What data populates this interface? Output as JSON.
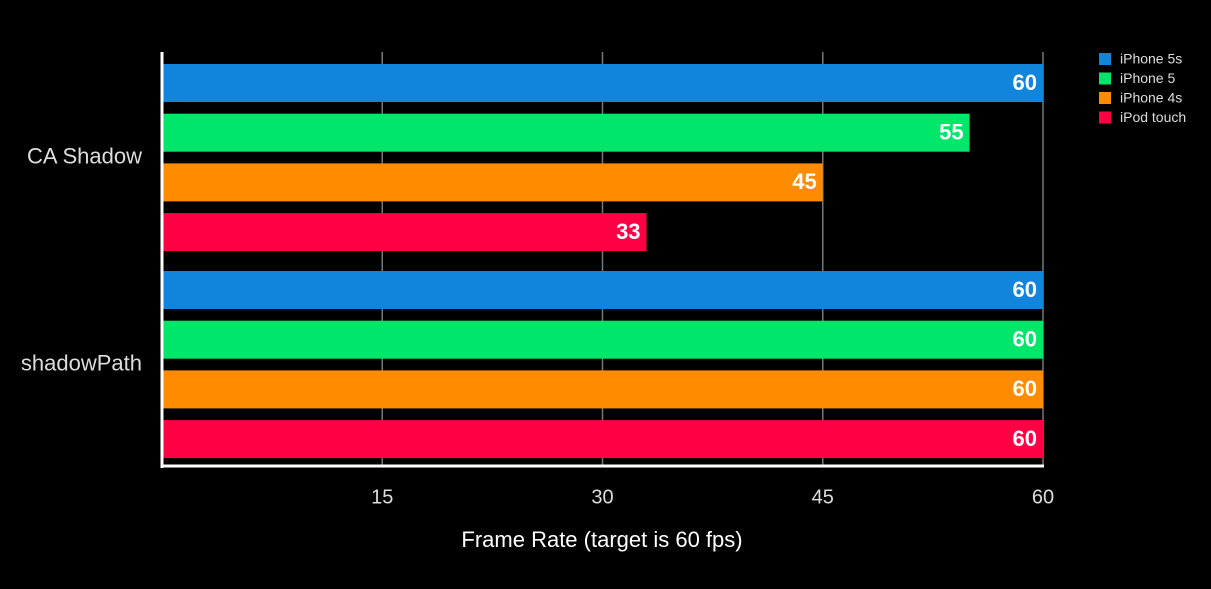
{
  "chart_data": {
    "type": "bar",
    "orientation": "horizontal",
    "x_label": "Frame Rate (target is 60 fps)",
    "categories": [
      "CA Shadow",
      "shadowPath"
    ],
    "series": [
      {
        "name": "iPhone 5s",
        "color": "#1185dc",
        "values": [
          60,
          60
        ]
      },
      {
        "name": "iPhone 5",
        "color": "#00e66a",
        "values": [
          55,
          60
        ]
      },
      {
        "name": "iPhone 4s",
        "color": "#ff8c00",
        "values": [
          45,
          60
        ]
      },
      {
        "name": "iPod touch",
        "color": "#ff0044",
        "values": [
          33,
          60
        ]
      }
    ],
    "xlim": [
      0,
      60
    ],
    "xticks": [
      15,
      30,
      45,
      60
    ],
    "grid": true,
    "legend": "upper right"
  }
}
